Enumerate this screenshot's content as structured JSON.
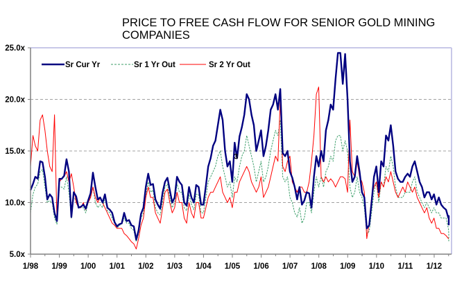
{
  "chart_data": {
    "type": "line",
    "title_lines": [
      "PRICE TO FREE CASH FLOW FOR SENIOR GOLD MINING",
      "COMPANIES"
    ],
    "xlabel": "",
    "ylabel": "",
    "x_tick_labels": [
      "1/98",
      "1/99",
      "1/00",
      "1/01",
      "1/02",
      "1/03",
      "1/04",
      "1/05",
      "1/06",
      "1/07",
      "1/08",
      "1/09",
      "1/10",
      "1/11",
      "1/12"
    ],
    "x_start_year": 1998,
    "xlim": [
      1998,
      2012.55
    ],
    "y_tick_labels": [
      "5.0x",
      "10.0x",
      "15.0x",
      "20.0x",
      "25.0x"
    ],
    "y_ticks": [
      5,
      10,
      15,
      20,
      25
    ],
    "ylim": [
      5,
      25
    ],
    "grid": "horizontal dashed",
    "legend_position": "top-left",
    "annotation": {
      "text": "3",
      "x": 2005.05,
      "y": 14.5
    },
    "step_years": 0.0833,
    "series": [
      {
        "name": "Sr Cur Yr",
        "color": "#000080",
        "style": "solid-thick",
        "values": [
          11.2,
          11.8,
          12.5,
          12.3,
          14.0,
          13.9,
          12.5,
          10.3,
          10.8,
          10.5,
          9.0,
          8.2,
          12.3,
          12.3,
          12.6,
          14.2,
          13.0,
          8.6,
          11.0,
          10.6,
          9.5,
          9.6,
          9.8,
          9.4,
          10.2,
          10.9,
          12.9,
          11.5,
          10.3,
          10.5,
          10.0,
          10.8,
          9.5,
          9.3,
          9.0,
          8.1,
          7.7,
          7.9,
          8.0,
          9.0,
          8.2,
          8.3,
          7.8,
          7.7,
          6.4,
          7.3,
          8.9,
          9.5,
          11.5,
          12.8,
          11.7,
          11.8,
          10.3,
          9.8,
          9.4,
          11.0,
          12.0,
          12.4,
          11.2,
          10.0,
          10.5,
          12.5,
          12.0,
          11.7,
          10.0,
          9.7,
          11.5,
          10.5,
          10.0,
          11.7,
          11.5,
          9.8,
          9.8,
          11.6,
          13.5,
          14.3,
          15.5,
          16.0,
          17.5,
          19.0,
          18.0,
          15.0,
          13.5,
          14.0,
          12.0,
          15.8,
          14.3,
          16.4,
          17.3,
          18.5,
          20.5,
          20.0,
          18.5,
          17.5,
          15.0,
          16.0,
          17.0,
          14.5,
          15.5,
          17.0,
          19.0,
          19.5,
          20.5,
          19.0,
          21.0,
          14.8,
          14.5,
          15.0,
          13.0,
          12.4,
          11.5,
          10.3,
          11.5,
          9.8,
          10.2,
          11.0,
          10.9,
          9.5,
          12.5,
          14.5,
          13.5,
          15.0,
          14.0,
          17.0,
          18.0,
          19.5,
          19.0,
          22.0,
          24.5,
          24.5,
          21.5,
          24.4,
          20.0,
          14.0,
          12.0,
          12.5,
          14.5,
          13.0,
          11.0,
          10.5,
          7.5,
          7.8,
          10.0,
          12.5,
          13.5,
          11.0,
          14.0,
          13.5,
          16.5,
          16.0,
          17.5,
          15.5,
          13.0,
          12.3,
          12.0,
          12.0,
          12.5,
          12.8,
          12.5,
          13.5,
          14.0,
          13.0,
          12.0,
          11.5,
          10.5,
          11.0,
          11.0,
          10.3,
          10.8,
          9.8,
          10.5,
          9.8,
          9.5,
          9.3,
          8.5,
          8.7,
          8.0,
          7.8
        ]
      },
      {
        "name": "Sr 1 Yr Out",
        "color": "#3C9E6A",
        "style": "dashed",
        "values": [
          9.0,
          10.8,
          11.5,
          11.8,
          13.0,
          13.2,
          11.5,
          10.0,
          10.2,
          10.0,
          8.5,
          7.9,
          11.5,
          11.5,
          11.3,
          12.5,
          11.0,
          8.5,
          10.5,
          10.2,
          9.5,
          9.5,
          9.5,
          9.0,
          10.0,
          10.5,
          11.5,
          10.0,
          9.5,
          9.8,
          9.5,
          10.5,
          9.2,
          9.0,
          8.5,
          8.0,
          7.5,
          7.8,
          7.9,
          8.5,
          8.0,
          8.0,
          7.5,
          7.3,
          6.2,
          7.0,
          8.5,
          9.0,
          10.8,
          12.0,
          11.0,
          11.2,
          9.5,
          9.0,
          8.8,
          10.2,
          11.5,
          11.8,
          10.5,
          9.5,
          10.0,
          11.8,
          11.0,
          11.0,
          9.5,
          9.2,
          10.8,
          9.8,
          9.3,
          10.8,
          10.8,
          9.0,
          9.0,
          10.5,
          12.0,
          12.5,
          13.0,
          13.5,
          14.5,
          15.0,
          13.5,
          12.5,
          11.5,
          12.0,
          10.5,
          12.5,
          12.0,
          13.5,
          14.5,
          15.0,
          16.5,
          15.5,
          14.5,
          13.5,
          12.0,
          13.0,
          14.0,
          12.0,
          12.5,
          13.5,
          15.0,
          16.0,
          17.0,
          16.5,
          18.0,
          12.5,
          12.0,
          12.5,
          10.5,
          10.0,
          9.0,
          8.6,
          9.5,
          8.0,
          8.5,
          10.0,
          10.0,
          9.0,
          11.0,
          12.5,
          11.5,
          12.5,
          11.5,
          13.0,
          13.5,
          14.5,
          14.0,
          16.0,
          16.5,
          16.5,
          15.0,
          16.0,
          15.0,
          11.5,
          10.5,
          11.0,
          12.5,
          11.0,
          10.5,
          9.5,
          7.0,
          7.2,
          9.0,
          11.0,
          12.0,
          10.0,
          12.0,
          11.5,
          13.5,
          13.0,
          14.5,
          13.5,
          11.5,
          10.5,
          10.5,
          10.5,
          11.0,
          11.0,
          11.0,
          12.0,
          12.5,
          11.0,
          10.5,
          10.0,
          9.5,
          10.0,
          9.5,
          9.0,
          9.5,
          9.0,
          9.0,
          8.5,
          8.5,
          8.5,
          7.5,
          7.0,
          6.5,
          6.2
        ]
      },
      {
        "name": "Sr 2 Yr Out",
        "color": "#FF0000",
        "style": "solid-thin",
        "values": [
          13.5,
          16.5,
          15.5,
          15.0,
          18.0,
          18.5,
          17.0,
          15.0,
          13.5,
          13.0,
          18.5,
          8.2,
          12.0,
          12.3,
          12.5,
          13.0,
          12.0,
          12.8,
          11.5,
          10.0,
          9.5,
          9.5,
          10.0,
          9.3,
          10.0,
          10.5,
          11.5,
          10.5,
          10.0,
          10.5,
          10.0,
          9.5,
          9.0,
          8.5,
          8.0,
          7.8,
          7.5,
          7.5,
          7.5,
          7.0,
          6.8,
          6.5,
          6.2,
          6.0,
          5.5,
          6.5,
          7.8,
          8.5,
          10.5,
          11.5,
          10.5,
          10.5,
          9.0,
          8.5,
          8.0,
          9.5,
          11.0,
          11.3,
          10.0,
          9.0,
          9.5,
          11.0,
          10.0,
          10.0,
          8.5,
          8.0,
          10.0,
          9.0,
          8.5,
          10.0,
          10.0,
          8.5,
          8.5,
          9.5,
          10.5,
          11.0,
          11.0,
          11.5,
          12.0,
          12.5,
          11.0,
          10.5,
          10.0,
          10.5,
          9.5,
          11.0,
          11.0,
          12.0,
          12.5,
          13.0,
          13.5,
          13.0,
          12.0,
          11.5,
          11.0,
          11.5,
          12.5,
          10.5,
          11.0,
          11.5,
          12.5,
          13.5,
          14.5,
          14.0,
          20.0,
          13.5,
          13.0,
          14.0,
          14.5,
          12.0,
          11.5,
          11.0,
          11.5,
          11.5,
          11.0,
          11.0,
          12.0,
          14.0,
          16.5,
          20.5,
          21.2,
          12.5,
          12.0,
          12.5,
          12.0,
          12.3,
          12.0,
          11.5,
          12.0,
          12.5,
          12.5,
          12.3,
          11.0,
          18.0,
          13.0,
          12.5,
          14.0,
          12.5,
          12.0,
          11.0,
          6.5,
          8.0,
          10.5,
          11.5,
          12.0,
          10.5,
          12.0,
          11.5,
          12.5,
          12.0,
          13.0,
          12.0,
          11.0,
          10.5,
          11.0,
          11.5,
          11.0,
          12.0,
          11.5,
          11.0,
          11.5,
          10.5,
          10.0,
          9.5,
          9.0,
          9.5,
          8.5,
          8.0,
          8.5,
          7.5,
          7.5,
          7.0,
          7.0,
          6.8,
          6.5,
          6.5
        ]
      }
    ]
  }
}
